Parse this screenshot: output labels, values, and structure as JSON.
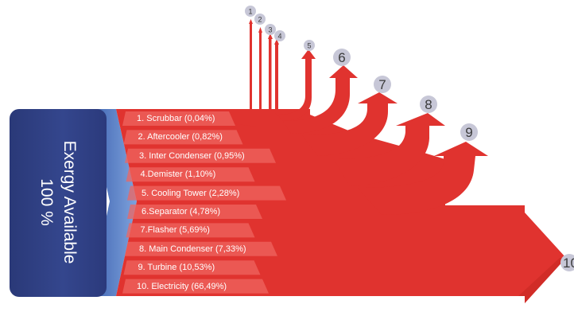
{
  "diagram": {
    "input": {
      "title": "Exergy Available",
      "value": "100 %"
    },
    "streams": [
      {
        "id": "1",
        "label": "1. Scrubbar (0,04%)"
      },
      {
        "id": "2",
        "label": "2. Aftercooler (0,82%)"
      },
      {
        "id": "3",
        "label": "3. Inter Condenser (0,95%)"
      },
      {
        "id": "4",
        "label": "4.Demister (1,10%)"
      },
      {
        "id": "5",
        "label": "5. Cooling Tower (2,28%)"
      },
      {
        "id": "6",
        "label": "6.Separator (4,78%)"
      },
      {
        "id": "7",
        "label": "7.Flasher (5,69%)"
      },
      {
        "id": "8",
        "label": "8. Main Condenser (7,33%)"
      },
      {
        "id": "9",
        "label": "9. Turbine (10,53%)"
      },
      {
        "id": "10",
        "label": "10. Electricity (66,49%)"
      }
    ],
    "colors": {
      "flow": "#e0332f",
      "flow_dark": "#b82320",
      "band": "#ef6560",
      "input_box": "#2f4085",
      "chevron": "#5b7fc4",
      "circle": "#c7c7d7"
    }
  }
}
